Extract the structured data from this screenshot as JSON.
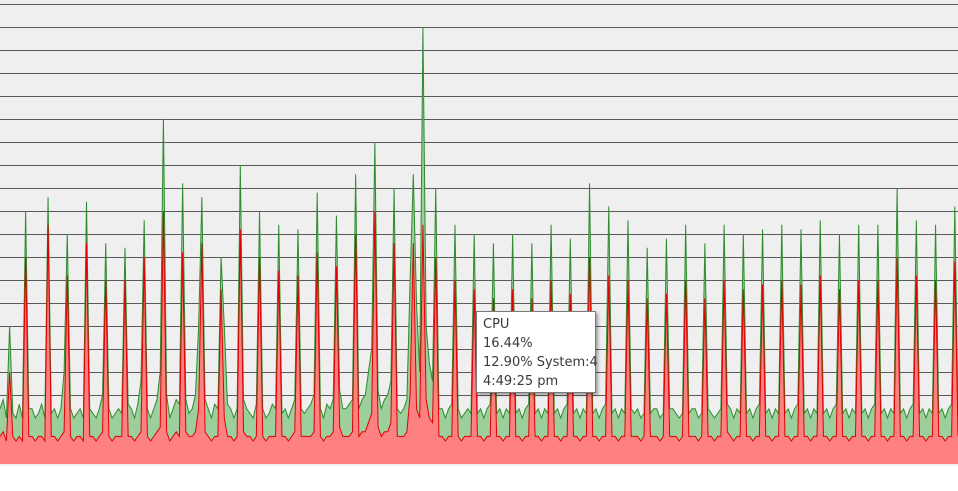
{
  "chart_data": {
    "type": "area",
    "ylim": [
      0,
      100
    ],
    "grid": true,
    "legend": "none",
    "colors": {
      "background": "#efefef",
      "grid": "#5a5a5a",
      "total_line": "#2e8b2e",
      "total_fill": "#9ccf9c",
      "system_line": "#e00000",
      "system_fill": "#ff8080"
    },
    "series": [
      {
        "values": [
          12,
          14,
          10,
          30,
          11,
          10,
          13,
          10,
          55,
          12,
          12,
          10,
          11,
          13,
          10,
          58,
          11,
          12,
          10,
          12,
          20,
          50,
          12,
          10,
          11,
          12,
          10,
          57,
          12,
          11,
          10,
          12,
          15,
          48,
          12,
          10,
          11,
          12,
          11,
          47,
          13,
          12,
          10,
          13,
          18,
          53,
          12,
          10,
          12,
          14,
          20,
          75,
          15,
          10,
          12,
          14,
          13,
          61,
          14,
          11,
          12,
          15,
          30,
          58,
          14,
          12,
          10,
          13,
          12,
          45,
          30,
          13,
          12,
          10,
          12,
          65,
          14,
          12,
          11,
          10,
          13,
          55,
          12,
          10,
          11,
          13,
          12,
          52,
          11,
          12,
          10,
          12,
          14,
          51,
          12,
          11,
          12,
          13,
          15,
          59,
          12,
          10,
          13,
          12,
          14,
          54,
          16,
          12,
          12,
          13,
          14,
          63,
          12,
          14,
          15,
          20,
          25,
          70,
          16,
          12,
          14,
          15,
          18,
          60,
          12,
          11,
          12,
          14,
          40,
          63,
          35,
          20,
          95,
          30,
          22,
          18,
          60,
          12,
          12,
          10,
          12,
          13,
          52,
          12,
          10,
          11,
          12,
          11,
          50,
          11,
          12,
          10,
          12,
          13,
          48,
          11,
          12,
          10,
          12,
          11,
          50,
          11,
          12,
          10,
          12,
          13,
          48,
          11,
          12,
          10,
          12,
          11,
          52,
          11,
          12,
          10,
          12,
          13,
          49,
          11,
          12,
          10,
          12,
          11,
          61,
          11,
          12,
          10,
          12,
          13,
          56,
          11,
          12,
          10,
          12,
          11,
          53,
          12,
          11,
          12,
          10,
          11,
          47,
          11,
          12,
          12,
          10,
          11,
          49,
          12,
          12,
          11,
          10,
          11,
          52,
          11,
          12,
          12,
          10,
          11,
          48,
          12,
          11,
          10,
          11,
          12,
          52,
          13,
          12,
          10,
          12,
          11,
          50,
          11,
          12,
          10,
          12,
          13,
          51,
          11,
          12,
          10,
          12,
          11,
          52,
          11,
          12,
          10,
          12,
          13,
          51,
          11,
          12,
          10,
          12,
          11,
          53,
          11,
          12,
          10,
          12,
          13,
          50,
          11,
          12,
          10,
          12,
          11,
          52,
          11,
          12,
          10,
          12,
          13,
          52,
          11,
          12,
          10,
          12,
          11,
          60,
          11,
          12,
          10,
          12,
          13,
          53,
          11,
          12,
          10,
          12,
          11,
          52,
          11,
          12,
          10,
          12,
          13,
          56,
          12
        ]
      },
      {
        "values": [
          6,
          7,
          5,
          20,
          6,
          5,
          6,
          5,
          45,
          6,
          6,
          5,
          6,
          6,
          5,
          52,
          6,
          6,
          5,
          6,
          7,
          41,
          6,
          5,
          6,
          6,
          5,
          48,
          6,
          6,
          5,
          6,
          7,
          40,
          6,
          5,
          6,
          6,
          6,
          40,
          6,
          6,
          5,
          6,
          7,
          45,
          6,
          5,
          6,
          7,
          8,
          55,
          7,
          5,
          6,
          7,
          6,
          46,
          7,
          6,
          6,
          7,
          12,
          48,
          7,
          6,
          5,
          6,
          6,
          38,
          10,
          6,
          6,
          5,
          6,
          51,
          7,
          6,
          6,
          5,
          6,
          45,
          6,
          5,
          6,
          6,
          6,
          42,
          6,
          6,
          5,
          6,
          7,
          41,
          6,
          6,
          6,
          6,
          7,
          46,
          6,
          5,
          6,
          6,
          7,
          43,
          8,
          6,
          6,
          6,
          7,
          50,
          6,
          7,
          7,
          9,
          11,
          55,
          8,
          6,
          7,
          7,
          9,
          48,
          6,
          6,
          6,
          7,
          15,
          48,
          12,
          10,
          52,
          14,
          10,
          9,
          45,
          6,
          6,
          5,
          6,
          6,
          40,
          6,
          5,
          6,
          6,
          6,
          38,
          6,
          6,
          5,
          6,
          6,
          36,
          6,
          6,
          5,
          6,
          6,
          38,
          6,
          6,
          5,
          6,
          6,
          36,
          6,
          6,
          5,
          6,
          6,
          40,
          6,
          6,
          5,
          6,
          6,
          37,
          6,
          6,
          5,
          6,
          6,
          45,
          6,
          6,
          5,
          6,
          6,
          41,
          6,
          6,
          5,
          6,
          6,
          40,
          6,
          6,
          6,
          5,
          6,
          36,
          6,
          6,
          6,
          5,
          6,
          37,
          6,
          6,
          6,
          5,
          6,
          40,
          6,
          6,
          6,
          5,
          6,
          36,
          6,
          6,
          5,
          6,
          6,
          40,
          7,
          6,
          5,
          6,
          6,
          38,
          6,
          6,
          5,
          6,
          6,
          39,
          6,
          6,
          5,
          6,
          6,
          40,
          6,
          6,
          5,
          6,
          6,
          39,
          6,
          6,
          5,
          6,
          6,
          41,
          6,
          6,
          5,
          6,
          6,
          38,
          6,
          6,
          5,
          6,
          6,
          40,
          6,
          6,
          5,
          6,
          6,
          40,
          6,
          6,
          5,
          6,
          6,
          45,
          6,
          6,
          5,
          6,
          6,
          41,
          6,
          6,
          5,
          6,
          6,
          40,
          6,
          6,
          5,
          6,
          6,
          44,
          6
        ]
      }
    ]
  },
  "tooltip": {
    "line1": "CPU",
    "line2": "16.44%",
    "line3": "12.90% System:4",
    "line4": "4:49:25 pm"
  }
}
